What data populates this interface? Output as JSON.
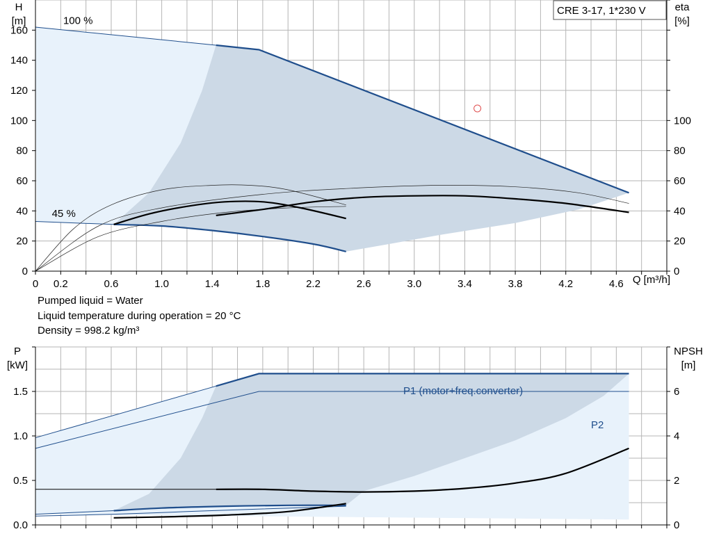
{
  "colors": {
    "accent": "#1f4e8c",
    "grid": "#b4b4b4",
    "area_light": "#e8f2fb",
    "area_dark": "#ccd9e6",
    "curve": "#000000",
    "duty_point": "#e05050"
  },
  "notes": {
    "liquid": "Pumped liquid = Water",
    "temperature": "Liquid temperature during operation = 20 °C",
    "density": "Density = 998.2 kg/m³"
  },
  "chart_data": [
    {
      "type": "line",
      "legend_box": "CRE 3-17, 1*230 V",
      "xlabel": "Q [m³/h]",
      "ylabel_left": "H\n[m]",
      "ylabel_right": "eta\n[%]",
      "xlim": [
        0,
        5.0
      ],
      "ylim": [
        0,
        180
      ],
      "eta_ylim": [
        0,
        180
      ],
      "x_ticks": [
        "0",
        "0.2",
        "0.6",
        "1.0",
        "1.4",
        "1.8",
        "2.2",
        "2.6",
        "3.0",
        "3.4",
        "3.8",
        "4.2",
        "4.6"
      ],
      "x_tick_values": [
        0,
        0.2,
        0.6,
        1.0,
        1.4,
        1.8,
        2.2,
        2.6,
        3.0,
        3.4,
        3.8,
        4.2,
        4.6
      ],
      "y_ticks": [
        "0",
        "20",
        "40",
        "60",
        "80",
        "100",
        "120",
        "140",
        "160"
      ],
      "y_tick_values": [
        0,
        20,
        40,
        60,
        80,
        100,
        120,
        140,
        160
      ],
      "eta_ticks": [
        "0",
        "20",
        "40",
        "60",
        "80",
        "100"
      ],
      "eta_tick_values": [
        0,
        20,
        40,
        60,
        80,
        100
      ],
      "annotations": [
        {
          "text": "100 %",
          "x": 0.22,
          "y": 164
        },
        {
          "text": "45 %",
          "x": 0.13,
          "y": 36
        }
      ],
      "duty_point": {
        "x": 3.5,
        "y": 108
      },
      "series": [
        {
          "role": "envelope-max",
          "x": [
            0,
            1.43,
            1.77,
            4.7
          ],
          "y": [
            162,
            150,
            147,
            52
          ]
        },
        {
          "role": "envelope-min",
          "x": [
            0,
            0.62,
            1.0,
            1.4,
            1.8,
            2.2,
            2.46
          ],
          "y": [
            33,
            31,
            30,
            27,
            23,
            18,
            13
          ]
        },
        {
          "role": "h-45",
          "x": [
            0.62,
            0.9,
            1.2,
            1.5,
            1.8,
            2.1,
            2.46
          ],
          "y": [
            31,
            38,
            43,
            46,
            46,
            42,
            35
          ]
        },
        {
          "role": "eta-max",
          "x": [
            1.43,
            1.8,
            2.2,
            2.6,
            3.0,
            3.4,
            3.8,
            4.2,
            4.7
          ],
          "y": [
            37,
            41,
            46,
            49,
            50,
            50,
            48,
            45,
            39
          ]
        },
        {
          "role": "eta-thin-1",
          "x": [
            0,
            0.3,
            0.6,
            1.0,
            1.4,
            1.7,
            2.0,
            2.46
          ],
          "y": [
            0,
            28,
            44,
            54,
            57,
            57,
            54,
            44
          ]
        },
        {
          "role": "eta-thin-2",
          "x": [
            0,
            0.5,
            1.0,
            1.8,
            2.5,
            3.2,
            3.8,
            4.3,
            4.7
          ],
          "y": [
            0,
            30,
            42,
            51,
            55,
            57,
            56,
            52,
            45
          ]
        },
        {
          "role": "eta-thin-3",
          "x": [
            0,
            0.5,
            1.0,
            1.5,
            2.0,
            2.46
          ],
          "y": [
            0,
            23,
            33,
            39,
            42,
            43
          ]
        }
      ]
    },
    {
      "type": "line",
      "ylabel_left": "P\n[kW]",
      "ylabel_right": "NPSH\n[m]",
      "xlim": [
        0,
        5.0
      ],
      "ylim": [
        0,
        2.0
      ],
      "npsh_ylim": [
        0,
        8
      ],
      "y_ticks": [
        "0.0",
        "0.5",
        "1.0",
        "1.5"
      ],
      "y_tick_values": [
        0,
        0.5,
        1.0,
        1.5
      ],
      "npsh_ticks": [
        "0",
        "2",
        "4",
        "6"
      ],
      "npsh_tick_values": [
        0,
        2,
        4,
        6
      ],
      "series": [
        {
          "name": "P1 (motor+freq.converter)",
          "role": "p1-max",
          "x": [
            0,
            1.43,
            1.77,
            4.7
          ],
          "y": [
            0.98,
            1.56,
            1.7,
            1.7
          ]
        },
        {
          "name": "P2",
          "role": "p2-max",
          "x": [
            0,
            1.77,
            4.7
          ],
          "y": [
            0.86,
            1.5,
            1.5
          ]
        },
        {
          "role": "npsh",
          "x": [
            0,
            1.43,
            1.8,
            2.2,
            2.6,
            3.0,
            3.4,
            3.8,
            4.2,
            4.7
          ],
          "y": [
            0.4,
            0.4,
            0.4,
            0.38,
            0.37,
            0.38,
            0.41,
            0.47,
            0.58,
            0.86
          ]
        },
        {
          "role": "p1-min",
          "x": [
            0,
            0.62,
            1.0,
            1.5,
            2.0,
            2.46
          ],
          "y": [
            0.12,
            0.16,
            0.19,
            0.21,
            0.22,
            0.22
          ]
        },
        {
          "role": "p2-min",
          "x": [
            0,
            0.62,
            1.2,
            1.8,
            2.46
          ],
          "y": [
            0.1,
            0.12,
            0.15,
            0.18,
            0.21
          ]
        },
        {
          "role": "p-45",
          "x": [
            0.62,
            1.0,
            1.5,
            2.0,
            2.46
          ],
          "y": [
            0.08,
            0.09,
            0.11,
            0.15,
            0.24
          ]
        }
      ]
    }
  ]
}
